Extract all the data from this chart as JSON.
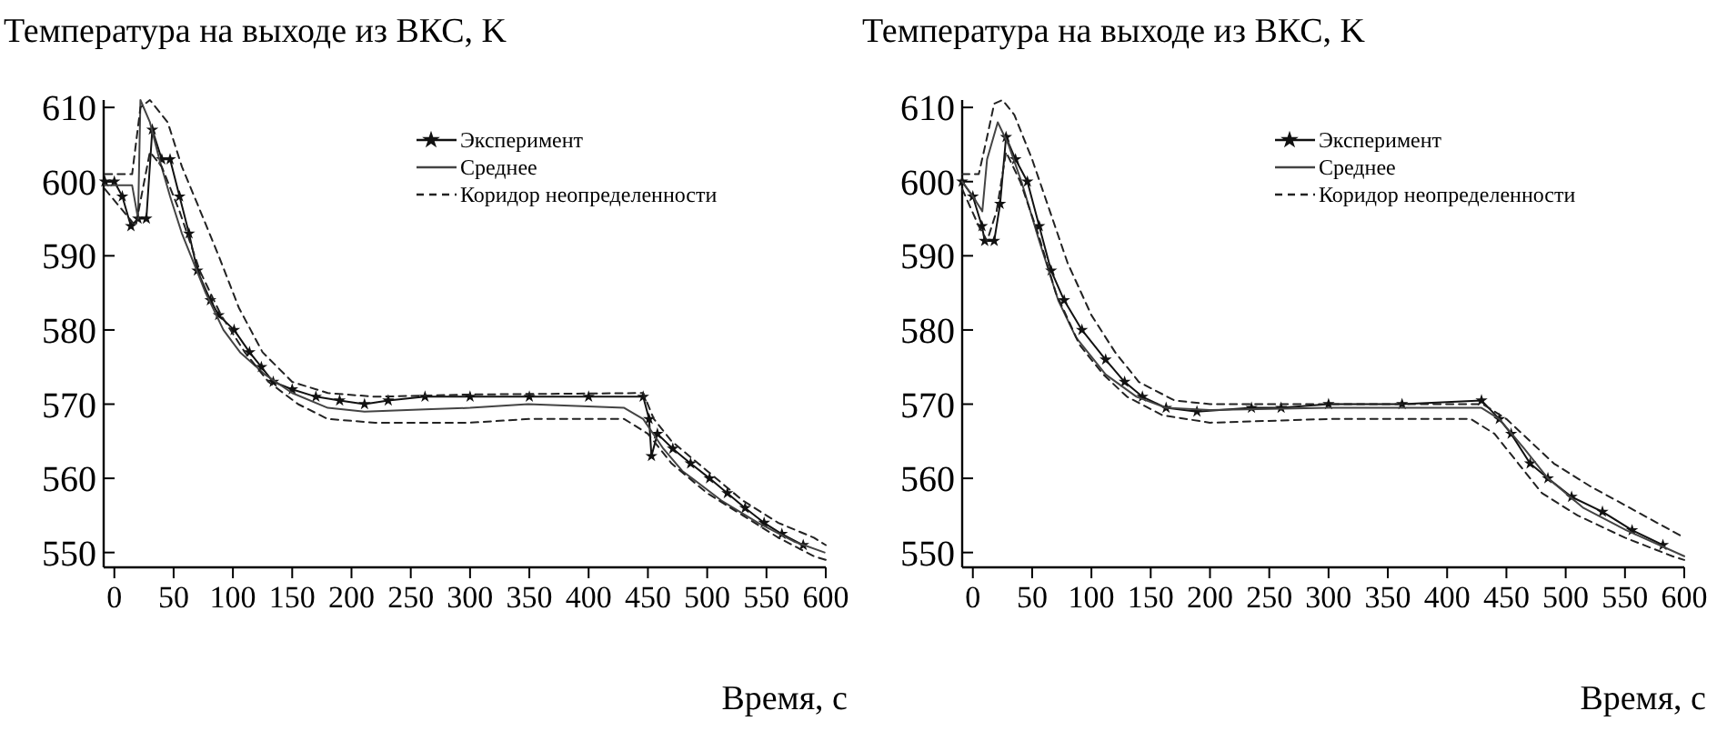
{
  "chart_data": [
    {
      "type": "line",
      "title": "Температура на выходе из ВКС, K",
      "xlabel": "Время, с",
      "xlim": [
        -9,
        600
      ],
      "ylim": [
        548,
        611
      ],
      "xticks": [
        0,
        50,
        100,
        150,
        200,
        250,
        300,
        350,
        400,
        450,
        500,
        550,
        600
      ],
      "yticks": [
        550,
        560,
        570,
        580,
        590,
        600,
        610
      ],
      "legend": "top right",
      "grid": false,
      "series": [
        {
          "name": "Эксперимент",
          "color": "#111111",
          "marker": "star",
          "line_style": "solid",
          "x": [
            -8,
            0,
            6.7,
            14,
            20,
            27,
            32,
            40,
            47,
            55,
            63,
            70,
            81,
            88,
            101,
            114,
            124,
            134,
            150,
            170,
            190,
            211,
            231,
            262,
            300,
            350,
            400,
            446,
            451,
            453,
            458,
            471,
            486,
            502,
            517,
            532,
            548,
            563,
            581
          ],
          "values": [
            600,
            600,
            598,
            594,
            595,
            595,
            607,
            603,
            603,
            598,
            593,
            588,
            584,
            582,
            580,
            577,
            575,
            573,
            572,
            571,
            570.5,
            570,
            570.5,
            571,
            571,
            571,
            571,
            571,
            568,
            563,
            566,
            564,
            562,
            560,
            558,
            556,
            554,
            552.5,
            551
          ]
        },
        {
          "name": "Среднее",
          "color": "#444444",
          "marker": "none",
          "line_style": "solid",
          "x": [
            -8,
            15,
            20,
            22,
            30,
            38,
            47,
            57,
            67,
            77,
            92,
            106,
            127,
            150,
            180,
            211,
            262,
            300,
            349,
            430,
            446,
            463,
            479,
            512,
            543,
            573,
            599
          ],
          "values": [
            599.5,
            599.5,
            595,
            611,
            608,
            603,
            598,
            593,
            589,
            585,
            580,
            577,
            574,
            571.5,
            569.5,
            569,
            569.3,
            569.5,
            570,
            569.5,
            568,
            564,
            561,
            557,
            554,
            551.5,
            550
          ]
        },
        {
          "name": "Коридор неопределенности",
          "color": "#222222",
          "marker": "none",
          "line_style": "dashed",
          "x": [
            -8,
            15,
            22,
            30,
            45,
            57,
            70,
            88,
            105,
            125,
            150,
            180,
            220,
            300,
            446,
            455,
            470,
            500,
            530,
            560,
            590,
            600
          ],
          "values": [
            601,
            601,
            610,
            611,
            608,
            602,
            597,
            590,
            583,
            577,
            573,
            571.5,
            571,
            571.3,
            571.5,
            568,
            565,
            561,
            557,
            554,
            552,
            551
          ]
        },
        {
          "color": "#222222",
          "marker": "none",
          "line_style": "dashed",
          "x": [
            -8,
            18,
            30,
            40,
            55,
            72,
            90,
            110,
            130,
            155,
            180,
            220,
            300,
            350,
            430,
            450,
            470,
            500,
            530,
            560,
            590,
            600
          ],
          "values": [
            599,
            594,
            604,
            602,
            596,
            588,
            582,
            577,
            573,
            570,
            568,
            567.5,
            567.5,
            568,
            568,
            566,
            562,
            558,
            555,
            552,
            549.5,
            549
          ]
        }
      ]
    },
    {
      "type": "line",
      "title": "Температура на выходе из ВКС, K",
      "xlabel": "Время, с",
      "xlim": [
        -9,
        600
      ],
      "ylim": [
        548,
        611
      ],
      "xticks": [
        0,
        50,
        100,
        150,
        200,
        250,
        300,
        350,
        400,
        450,
        500,
        550,
        600
      ],
      "yticks": [
        550,
        560,
        570,
        580,
        590,
        600,
        610
      ],
      "legend": "top right",
      "grid": false,
      "series": [
        {
          "name": "Эксперимент",
          "color": "#111111",
          "marker": "star",
          "line_style": "solid",
          "x": [
            -9,
            0,
            7.7,
            10,
            18,
            23,
            28,
            36,
            46,
            56,
            66,
            77,
            92,
            112,
            128,
            143,
            163,
            189,
            235,
            260,
            300,
            362,
            429,
            444,
            454,
            470,
            485,
            505,
            531,
            556,
            582
          ],
          "values": [
            600,
            598,
            594,
            592,
            592,
            597,
            606,
            603,
            600,
            594,
            588,
            584,
            580,
            576,
            573,
            571,
            569.5,
            569,
            569.5,
            569.5,
            570,
            570,
            570.5,
            568,
            566,
            562,
            560,
            557.5,
            555.5,
            553,
            551
          ]
        },
        {
          "name": "Среднее",
          "color": "#444444",
          "marker": "none",
          "line_style": "solid",
          "x": [
            -9,
            0,
            8,
            12,
            21,
            30,
            41,
            56,
            72,
            87,
            112,
            138,
            163,
            200,
            300,
            429,
            444,
            465,
            485,
            515,
            551,
            600
          ],
          "values": [
            600,
            598,
            596,
            603,
            608,
            605,
            600,
            592,
            584,
            579,
            574,
            571,
            569.5,
            569.2,
            569.5,
            569.5,
            568,
            564,
            560,
            556,
            553,
            549.5
          ]
        },
        {
          "name": "Коридор неопределенности",
          "color": "#222222",
          "marker": "none",
          "line_style": "dashed",
          "x": [
            -9,
            5,
            12,
            18,
            25,
            35,
            50,
            65,
            80,
            100,
            120,
            140,
            170,
            200,
            300,
            430,
            450,
            470,
            490,
            520,
            560,
            600
          ],
          "values": [
            601,
            601,
            606,
            610.5,
            611,
            609,
            603,
            596,
            589,
            582,
            577,
            573,
            570.5,
            570,
            570,
            570,
            568,
            565,
            562,
            559,
            555.5,
            552
          ]
        },
        {
          "color": "#222222",
          "marker": "none",
          "line_style": "dashed",
          "x": [
            -9,
            5,
            12,
            20,
            28,
            40,
            55,
            70,
            90,
            110,
            130,
            160,
            200,
            300,
            420,
            440,
            460,
            480,
            510,
            550,
            590,
            600
          ],
          "values": [
            599,
            594,
            592,
            596,
            604,
            600,
            593,
            585,
            578,
            574,
            571,
            568.5,
            567.5,
            568,
            568,
            566,
            562,
            558,
            555,
            552,
            549.5,
            549
          ]
        }
      ]
    }
  ]
}
